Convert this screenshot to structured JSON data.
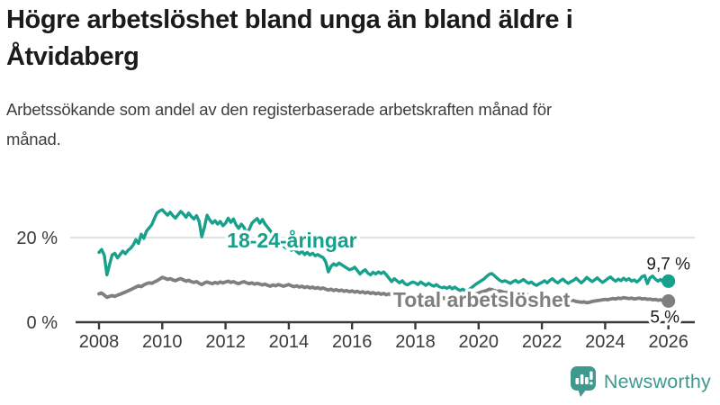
{
  "header": {
    "title": "Högre arbetslöshet bland unga än bland äldre i Åtvidaberg",
    "subtitle": "Arbetssökande som andel av den registerbaserade arbetskraften månad för månad."
  },
  "branding": {
    "name": "Newsworthy",
    "color": "#3F998E"
  },
  "colors": {
    "young_series": "#17A08C",
    "total_series": "#7F7F7F",
    "gridline": "#E1E1E1",
    "axis": "#3A3A3A",
    "tick_label": "#3A3A3A",
    "value_label": "#1B1B1B"
  },
  "chart_data": {
    "type": "line",
    "title": "Högre arbetslöshet bland unga än bland äldre i Åtvidaberg",
    "subtitle": "Arbetssökande som andel av den registerbaserade arbetskraften månad för månad.",
    "interval": "monthly",
    "grid": "horizontal-only",
    "legend_position": "inline-labels",
    "x_axis": {
      "start": 2008,
      "end": 2026,
      "ticks": [
        2008,
        2010,
        2012,
        2014,
        2016,
        2018,
        2020,
        2022,
        2024,
        2026
      ]
    },
    "y_axis": {
      "unit": "%",
      "ylim": [
        0,
        28
      ],
      "ticks": [
        {
          "value": 0,
          "label": "0 %"
        },
        {
          "value": 20,
          "label": "20 %"
        }
      ]
    },
    "series": [
      {
        "name": "Total arbetslöshet",
        "color": "#7F7F7F",
        "end_label": "5 %",
        "end_value": 5.0,
        "values": [
          6.7,
          6.9,
          6.4,
          5.9,
          6.1,
          6.3,
          6.1,
          6.4,
          6.6,
          6.9,
          7.1,
          7.4,
          7.7,
          8.0,
          8.3,
          8.6,
          8.4,
          8.8,
          9.1,
          9.3,
          9.2,
          9.5,
          9.8,
          10.2,
          10.6,
          10.4,
          10.1,
          10.3,
          10.0,
          9.8,
          10.1,
          10.3,
          10.0,
          9.7,
          9.9,
          9.6,
          9.4,
          9.6,
          9.2,
          8.9,
          9.3,
          9.5,
          9.3,
          9.1,
          9.4,
          9.2,
          9.5,
          9.3,
          9.5,
          9.7,
          9.4,
          9.6,
          9.3,
          9.1,
          9.4,
          9.6,
          9.3,
          9.1,
          9.3,
          9.0,
          9.2,
          9.0,
          8.8,
          9.0,
          8.7,
          8.5,
          8.8,
          8.6,
          8.9,
          8.7,
          8.5,
          8.7,
          8.9,
          8.6,
          8.4,
          8.6,
          8.3,
          8.5,
          8.2,
          8.4,
          8.1,
          8.3,
          8.0,
          8.2,
          7.9,
          8.1,
          7.8,
          7.6,
          7.8,
          7.5,
          7.7,
          7.4,
          7.6,
          7.3,
          7.5,
          7.2,
          7.4,
          7.1,
          7.3,
          7.0,
          7.2,
          6.9,
          7.1,
          6.8,
          7.0,
          6.7,
          6.9,
          6.6,
          6.8,
          6.5,
          6.7,
          6.4,
          6.6,
          6.3,
          6.5,
          6.2,
          6.4,
          6.1,
          6.3,
          6.0,
          6.2,
          5.9,
          6.1,
          5.8,
          6.0,
          5.8,
          6.0,
          5.7,
          5.9,
          5.7,
          5.9,
          5.6,
          5.8,
          5.6,
          5.8,
          5.5,
          5.7,
          5.5,
          5.7,
          5.9,
          6.1,
          6.3,
          6.5,
          6.7,
          6.9,
          7.1,
          7.3,
          7.5,
          7.8,
          7.7,
          7.5,
          7.3,
          7.4,
          7.2,
          7.0,
          7.1,
          6.9,
          7.0,
          6.8,
          6.9,
          6.7,
          6.5,
          6.6,
          6.4,
          6.2,
          6.3,
          6.1,
          6.0,
          5.9,
          6.0,
          5.8,
          5.7,
          5.8,
          5.6,
          5.5,
          5.6,
          5.4,
          5.3,
          5.4,
          5.2,
          5.1,
          4.9,
          4.8,
          4.7,
          4.8,
          4.6,
          4.7,
          4.9,
          5.0,
          5.1,
          5.2,
          5.3,
          5.4,
          5.3,
          5.5,
          5.6,
          5.5,
          5.7,
          5.6,
          5.8,
          5.7,
          5.6,
          5.7,
          5.5,
          5.6,
          5.7,
          5.5,
          5.6,
          5.4,
          5.5,
          5.3,
          5.4,
          5.2,
          5.3,
          5.1,
          5.0,
          5.0
        ]
      },
      {
        "name": "18-24-åringar",
        "color": "#17A08C",
        "end_label": "9,7 %",
        "end_value": 9.7,
        "values": [
          16.5,
          17.2,
          15.8,
          11.2,
          13.6,
          15.9,
          16.3,
          15.2,
          16.0,
          16.8,
          16.2,
          17.0,
          17.5,
          18.3,
          19.5,
          18.6,
          20.8,
          19.8,
          21.5,
          22.3,
          23.0,
          24.5,
          25.8,
          26.3,
          26.6,
          25.9,
          25.3,
          26.0,
          25.2,
          24.6,
          25.4,
          26.2,
          25.6,
          24.8,
          25.8,
          25.0,
          24.4,
          25.2,
          23.8,
          20.2,
          22.5,
          25.3,
          24.2,
          23.4,
          24.0,
          23.2,
          23.8,
          22.8,
          23.4,
          24.6,
          23.6,
          24.4,
          23.0,
          22.2,
          23.2,
          22.4,
          21.0,
          22.0,
          23.4,
          24.0,
          24.5,
          23.4,
          24.3,
          23.2,
          22.4,
          21.6,
          20.8,
          20.0,
          19.2,
          18.6,
          18.0,
          17.5,
          17.8,
          17.0,
          17.5,
          16.7,
          16.2,
          16.8,
          16.0,
          16.5,
          15.9,
          16.3,
          15.7,
          16.0,
          15.6,
          15.3,
          14.3,
          11.9,
          13.2,
          13.8,
          13.4,
          14.0,
          13.6,
          13.2,
          12.8,
          12.4,
          12.6,
          13.0,
          12.2,
          11.4,
          12.0,
          12.4,
          11.6,
          11.2,
          11.8,
          11.4,
          11.9,
          11.5,
          11.9,
          11.2,
          10.4,
          9.6,
          10.3,
          9.8,
          9.3,
          9.8,
          9.1,
          8.8,
          9.2,
          9.5,
          9.3,
          8.9,
          9.5,
          9.1,
          8.7,
          9.2,
          8.8,
          8.5,
          8.9,
          8.4,
          8.1,
          8.3,
          8.0,
          8.4,
          7.9,
          8.3,
          7.8,
          7.5,
          7.8,
          7.4,
          7.6,
          8.0,
          8.5,
          9.0,
          9.4,
          9.8,
          10.2,
          10.8,
          11.3,
          11.5,
          11.0,
          10.4,
          9.9,
          9.6,
          9.8,
          9.5,
          9.2,
          9.6,
          9.9,
          9.4,
          9.7,
          10.1,
          9.6,
          9.2,
          9.5,
          9.0,
          8.7,
          9.1,
          9.4,
          9.8,
          9.3,
          9.9,
          10.3,
          9.7,
          9.3,
          9.8,
          10.2,
          9.6,
          9.2,
          9.6,
          9.9,
          10.4,
          9.8,
          9.3,
          9.9,
          10.6,
          10.1,
          9.6,
          10.0,
          10.5,
          9.9,
          9.4,
          9.8,
          10.3,
          10.7,
          10.1,
          9.7,
          10.2,
          9.8,
          10.4,
          9.9,
          10.3,
          9.7,
          10.0,
          9.5,
          10.0,
          10.8,
          11.0,
          9.1,
          10.5,
          10.9,
          10.2,
          9.7,
          10.1,
          9.5,
          9.9,
          9.7
        ]
      }
    ]
  }
}
